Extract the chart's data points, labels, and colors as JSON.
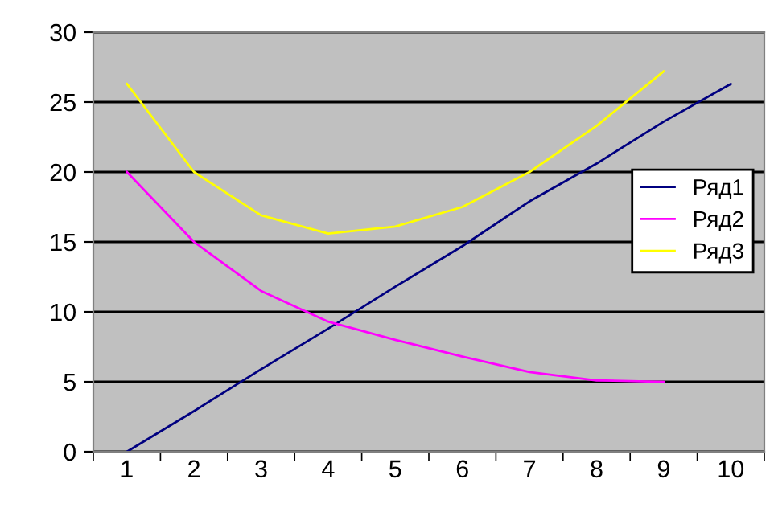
{
  "chart_data": {
    "type": "line",
    "categories": [
      "1",
      "2",
      "3",
      "4",
      "5",
      "6",
      "7",
      "8",
      "9",
      "10"
    ],
    "series": [
      {
        "name": "Ряд1",
        "color": "#000080",
        "values": [
          0,
          2.9,
          5.9,
          8.8,
          11.8,
          14.7,
          17.9,
          20.6,
          23.6,
          26.3
        ]
      },
      {
        "name": "Ряд2",
        "color": "#ff00ff",
        "values": [
          20,
          15,
          11.5,
          9.3,
          8,
          6.8,
          5.7,
          5.1,
          5.0,
          null
        ]
      },
      {
        "name": "Ряд3",
        "color": "#ffff00",
        "values": [
          26.3,
          20,
          16.9,
          15.6,
          16.1,
          17.5,
          20,
          23.3,
          27.2,
          null
        ]
      }
    ],
    "ylim": [
      0,
      30
    ],
    "yticks": [
      0,
      5,
      10,
      15,
      20,
      25,
      30
    ],
    "grid": "y",
    "legend": "right",
    "marker": "none",
    "line_style": "solid"
  }
}
